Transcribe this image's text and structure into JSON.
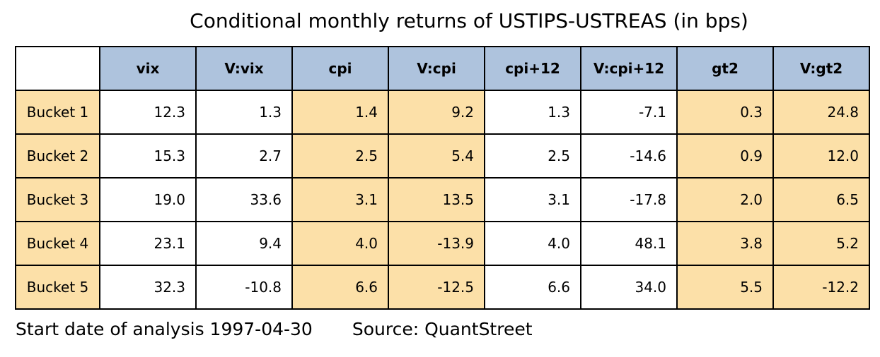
{
  "colors": {
    "header_bg": "#aec3dd",
    "highlight_bg": "#fce0a8",
    "border": "#000000",
    "text": "#000000",
    "background": "#ffffff"
  },
  "chart_data": {
    "type": "table",
    "title": "Conditional monthly returns of USTIPS-USTREAS (in bps)",
    "columns": [
      "vix",
      "V:vix",
      "cpi",
      "V:cpi",
      "cpi+12",
      "V:cpi+12",
      "gt2",
      "V:gt2"
    ],
    "shaded_columns": [
      "cpi",
      "V:cpi",
      "gt2",
      "V:gt2"
    ],
    "rows": [
      {
        "label": "Bucket 1",
        "values": [
          "12.3",
          "1.3",
          "1.4",
          "9.2",
          "1.3",
          "-7.1",
          "0.3",
          "24.8"
        ]
      },
      {
        "label": "Bucket 2",
        "values": [
          "15.3",
          "2.7",
          "2.5",
          "5.4",
          "2.5",
          "-14.6",
          "0.9",
          "12.0"
        ]
      },
      {
        "label": "Bucket 3",
        "values": [
          "19.0",
          "33.6",
          "3.1",
          "13.5",
          "3.1",
          "-17.8",
          "2.0",
          "6.5"
        ]
      },
      {
        "label": "Bucket 4",
        "values": [
          "23.1",
          "9.4",
          "4.0",
          "-13.9",
          "4.0",
          "48.1",
          "3.8",
          "5.2"
        ]
      },
      {
        "label": "Bucket 5",
        "values": [
          "32.3",
          "-10.8",
          "6.6",
          "-12.5",
          "6.6",
          "34.0",
          "5.5",
          "-12.2"
        ]
      }
    ]
  },
  "footer": {
    "start_date": "Start date of analysis 1997-04-30",
    "source": "Source: QuantStreet"
  }
}
